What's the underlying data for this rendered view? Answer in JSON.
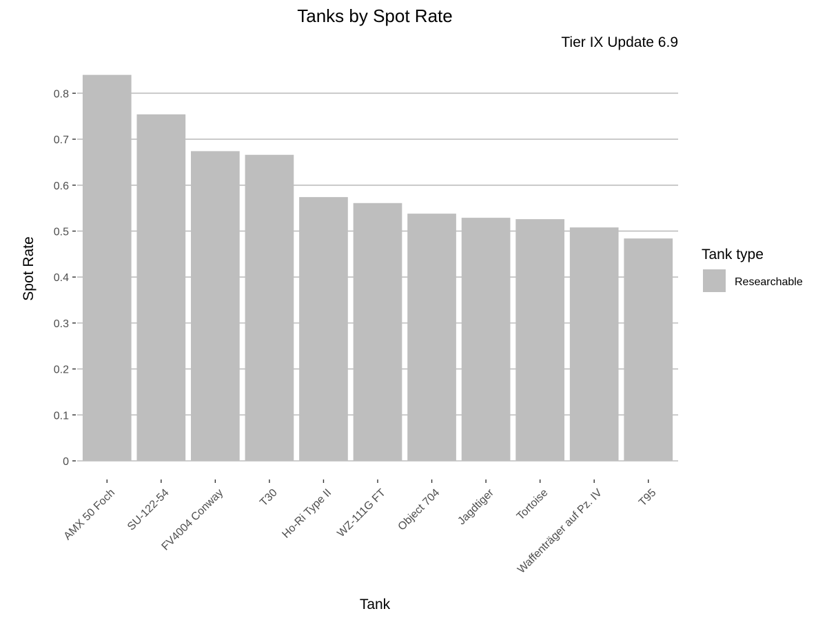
{
  "chart_data": {
    "type": "bar",
    "title": "Tanks by Spot Rate",
    "subtitle": "Tier IX Update 6.9",
    "xlabel": "Tank",
    "ylabel": "Spot Rate",
    "categories": [
      "AMX 50 Foch",
      "SU-122-54",
      "FV4004 Conway",
      "T30",
      "Ho-Ri Type II",
      "WZ-111G FT",
      "Object 704",
      "Jagdtiger",
      "Tortoise",
      "Waffenträger auf Pz. IV",
      "T95"
    ],
    "values": [
      0.84,
      0.754,
      0.674,
      0.666,
      0.574,
      0.561,
      0.538,
      0.529,
      0.526,
      0.508,
      0.484
    ],
    "ylim": [
      0,
      0.85
    ],
    "yticks": [
      0,
      0.1,
      0.2,
      0.3,
      0.4,
      0.5,
      0.6,
      0.7,
      0.8
    ],
    "ytick_labels": [
      "0",
      "0.1",
      "0.2",
      "0.3",
      "0.4",
      "0.5",
      "0.6",
      "0.7",
      "0.8"
    ],
    "grid": true,
    "bar_color": "#bebebe",
    "legend": {
      "title": "Tank type",
      "placement": "right",
      "items": [
        {
          "label": "Researchable",
          "color": "#bebebe"
        }
      ]
    }
  }
}
